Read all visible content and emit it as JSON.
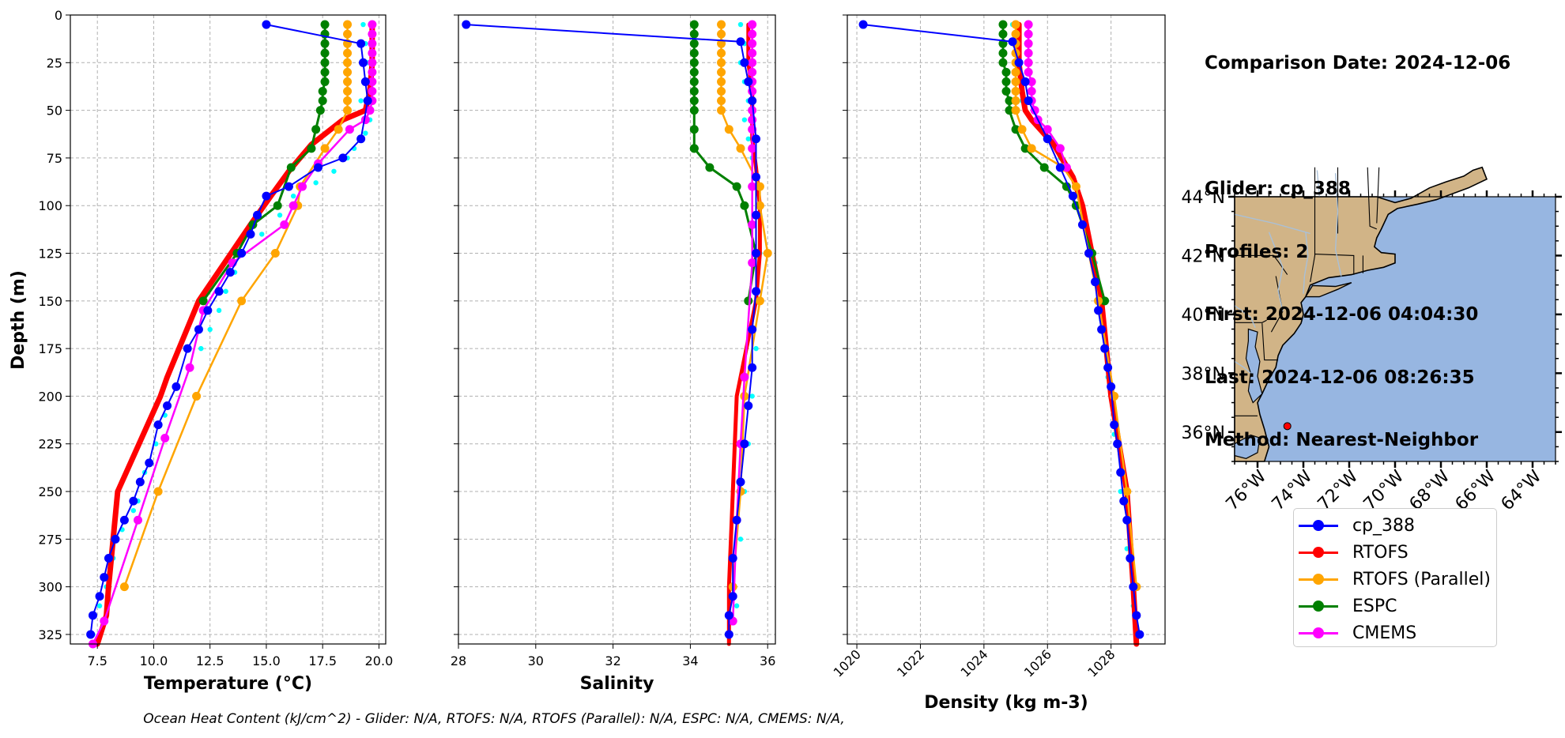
{
  "info": {
    "title": "Comparison Date: 2024-12-06",
    "lines": [
      "Glider: cp_388",
      "Profiles: 2",
      "First: 2024-12-06 04:04:30",
      "Last: 2024-12-06 08:26:35",
      "Method: Nearest-Neighbor"
    ]
  },
  "footer": "Ocean Heat Content (kJ/cm^2) - Glider: N/A,  RTOFS: N/A,  RTOFS (Parallel): N/A,  ESPC: N/A,  CMEMS: N/A,",
  "legend": [
    {
      "name": "cp_388",
      "color": "#0000ff"
    },
    {
      "name": "RTOFS",
      "color": "#ff0000"
    },
    {
      "name": "RTOFS (Parallel)",
      "color": "#ffa500"
    },
    {
      "name": "ESPC",
      "color": "#008000"
    },
    {
      "name": "CMEMS",
      "color": "#ff00ff"
    }
  ],
  "chart_data": [
    {
      "type": "line",
      "xlabel": "Temperature (°C)",
      "ylabel": "Depth (m)",
      "xlim": [
        6.3,
        20.3
      ],
      "ylim": [
        330,
        0
      ],
      "xticks": [
        "7.5",
        "10.0",
        "12.5",
        "15.0",
        "17.5",
        "20.0"
      ],
      "xtick_values": [
        7.5,
        10,
        12.5,
        15,
        17.5,
        20
      ],
      "yticks": [
        "0",
        "25",
        "50",
        "75",
        "100",
        "125",
        "150",
        "175",
        "200",
        "225",
        "250",
        "275",
        "300",
        "325"
      ],
      "grid": true,
      "series": [
        {
          "name": "cp_388 (other profile)",
          "color": "#00ffff",
          "style": "dots",
          "x": [
            19.3,
            19.4,
            19.5,
            19.5,
            19.2,
            19.6,
            19.4,
            18.9,
            18.6,
            18.0,
            17.2,
            16.2,
            15.6,
            14.8,
            14.0,
            13.6,
            13.2,
            12.9,
            12.5,
            12.1,
            11.6,
            11.0,
            10.5,
            10.1,
            9.6,
            9.3,
            9.1,
            8.6,
            8.2,
            7.9,
            7.6,
            7.3
          ],
          "y": [
            5,
            15,
            25,
            35,
            45,
            55,
            62,
            70,
            75,
            82,
            88,
            95,
            105,
            115,
            125,
            135,
            145,
            155,
            165,
            175,
            185,
            195,
            210,
            225,
            240,
            255,
            260,
            270,
            285,
            300,
            310,
            325
          ]
        },
        {
          "name": "RTOFS",
          "color": "#ff0000",
          "width": 7,
          "marker": false,
          "x": [
            19.7,
            19.7,
            19.7,
            19.6,
            19.4,
            18.4,
            17.0,
            16.0,
            15.2,
            14.3,
            12.0,
            10.6,
            10.3,
            8.4,
            8.0,
            7.9,
            7.5
          ],
          "y": [
            5,
            15,
            25,
            40,
            50,
            55,
            68,
            82,
            95,
            110,
            150,
            190,
            200,
            250,
            300,
            315,
            330
          ]
        },
        {
          "name": "ESPC",
          "color": "#008000",
          "width": 3,
          "x": [
            17.6,
            17.6,
            17.6,
            17.6,
            17.6,
            17.6,
            17.6,
            17.5,
            17.5,
            17.4,
            17.2,
            17.0,
            16.1,
            15.5,
            14.4,
            13.7,
            12.2
          ],
          "y": [
            5,
            10,
            15,
            20,
            25,
            30,
            35,
            40,
            45,
            50,
            60,
            70,
            80,
            100,
            110,
            125,
            150
          ]
        },
        {
          "name": "RTOFS (Parallel)",
          "color": "#ffa500",
          "width": 2.5,
          "x": [
            18.6,
            18.6,
            18.6,
            18.6,
            18.6,
            18.6,
            18.6,
            18.6,
            18.6,
            18.6,
            18.2,
            17.6,
            16.5,
            16.4,
            15.4,
            13.9,
            11.9,
            10.2,
            8.7
          ],
          "y": [
            5,
            10,
            15,
            20,
            25,
            30,
            35,
            40,
            45,
            50,
            60,
            70,
            90,
            100,
            125,
            150,
            200,
            250,
            300
          ]
        },
        {
          "name": "CMEMS",
          "color": "#ff00ff",
          "width": 2.5,
          "x": [
            19.7,
            19.7,
            19.7,
            19.7,
            19.7,
            19.7,
            19.7,
            19.7,
            19.7,
            19.6,
            19.4,
            18.7,
            17.3,
            16.6,
            16.2,
            15.8,
            13.5,
            12.2,
            11.6,
            10.5,
            9.3,
            7.8,
            7.3
          ],
          "y": [
            5,
            10,
            15,
            20,
            25,
            30,
            35,
            40,
            45,
            50,
            55,
            60,
            78,
            90,
            100,
            110,
            130,
            155,
            185,
            222,
            265,
            318,
            330
          ]
        },
        {
          "name": "cp_388",
          "color": "#0000ff",
          "width": 2,
          "x": [
            15.0,
            19.2,
            19.3,
            19.4,
            19.5,
            19.2,
            18.4,
            17.3,
            16.0,
            15.0,
            14.6,
            14.3,
            13.9,
            13.4,
            12.9,
            12.4,
            12.0,
            11.5,
            11.0,
            10.6,
            10.2,
            9.8,
            9.4,
            9.1,
            8.7,
            8.3,
            8.0,
            7.8,
            7.6,
            7.3,
            7.2
          ],
          "y": [
            5,
            15,
            25,
            35,
            45,
            65,
            75,
            80,
            90,
            95,
            105,
            115,
            125,
            135,
            145,
            155,
            165,
            175,
            195,
            205,
            215,
            235,
            245,
            255,
            265,
            275,
            285,
            295,
            305,
            315,
            325
          ]
        }
      ]
    },
    {
      "type": "line",
      "xlabel": "Salinity",
      "ylim": [
        330,
        0
      ],
      "xlim": [
        28.0,
        36.2
      ],
      "xticks": [
        "28",
        "30",
        "32",
        "34",
        "36"
      ],
      "xtick_values": [
        28,
        30,
        32,
        34,
        36
      ],
      "grid": true,
      "series": [
        {
          "name": "cp_388 (other profile)",
          "color": "#00ffff",
          "style": "dots",
          "x": [
            35.3,
            35.4,
            35.3,
            35.4,
            35.5,
            35.4,
            35.5,
            35.6,
            35.7,
            35.8,
            35.8,
            35.8,
            35.7,
            35.6,
            35.5,
            35.4,
            35.3,
            35.2
          ],
          "y": [
            5,
            15,
            25,
            35,
            45,
            55,
            65,
            75,
            85,
            100,
            125,
            150,
            175,
            200,
            225,
            250,
            275,
            310
          ]
        },
        {
          "name": "RTOFS",
          "color": "#ff0000",
          "width": 5,
          "marker": false,
          "x": [
            35.5,
            35.5,
            35.5,
            35.6,
            35.6,
            35.6,
            35.6,
            35.7,
            35.8,
            35.8,
            35.7,
            35.2,
            35.1,
            35.0,
            35.0
          ],
          "y": [
            5,
            15,
            25,
            40,
            50,
            55,
            65,
            80,
            100,
            125,
            150,
            200,
            250,
            300,
            330
          ]
        },
        {
          "name": "ESPC",
          "color": "#008000",
          "width": 3,
          "x": [
            34.1,
            34.1,
            34.1,
            34.1,
            34.1,
            34.1,
            34.1,
            34.1,
            34.1,
            34.1,
            34.1,
            34.1,
            34.1,
            34.5,
            35.2,
            35.4,
            35.7,
            35.5
          ],
          "y": [
            5,
            10,
            15,
            20,
            25,
            30,
            35,
            40,
            45,
            50,
            60,
            70,
            70,
            80,
            90,
            100,
            125,
            150
          ]
        },
        {
          "name": "RTOFS (Parallel)",
          "color": "#ffa500",
          "width": 2.5,
          "x": [
            34.8,
            34.8,
            34.8,
            34.8,
            34.8,
            34.8,
            34.8,
            34.8,
            34.8,
            34.8,
            35.0,
            35.3,
            35.8,
            35.8,
            36.0,
            35.8,
            35.4,
            35.3,
            35.1
          ],
          "y": [
            5,
            10,
            15,
            20,
            25,
            30,
            35,
            40,
            45,
            50,
            60,
            70,
            90,
            100,
            125,
            150,
            200,
            250,
            300
          ]
        },
        {
          "name": "CMEMS",
          "color": "#ff00ff",
          "width": 2.5,
          "x": [
            35.6,
            35.6,
            35.6,
            35.6,
            35.6,
            35.6,
            35.6,
            35.6,
            35.6,
            35.6,
            35.6,
            35.6,
            35.6,
            35.6,
            35.6,
            35.6,
            35.4,
            35.3,
            35.2,
            35.1
          ],
          "y": [
            5,
            10,
            15,
            20,
            25,
            30,
            35,
            40,
            45,
            50,
            55,
            60,
            70,
            90,
            110,
            130,
            190,
            225,
            265,
            318
          ]
        },
        {
          "name": "cp_388",
          "color": "#0000ff",
          "width": 2,
          "x": [
            28.2,
            35.3,
            35.4,
            35.5,
            35.6,
            35.7,
            35.7,
            35.7,
            35.7,
            35.7,
            35.6,
            35.6,
            35.5,
            35.4,
            35.3,
            35.2,
            35.1,
            35.1,
            35.0,
            35.0
          ],
          "y": [
            5,
            14,
            25,
            35,
            45,
            65,
            85,
            105,
            125,
            145,
            165,
            185,
            205,
            225,
            245,
            265,
            285,
            305,
            315,
            325
          ]
        }
      ]
    },
    {
      "type": "line",
      "xlabel": "Density (kg m-3)",
      "ylim": [
        330,
        0
      ],
      "xlim": [
        1019.7,
        1029.7
      ],
      "xticks": [
        "1020",
        "1022",
        "1024",
        "1026",
        "1028"
      ],
      "xtick_values": [
        1020,
        1022,
        1024,
        1026,
        1028
      ],
      "grid": true,
      "series": [
        {
          "name": "cp_388 (other profile)",
          "color": "#00ffff",
          "style": "dots",
          "x": [
            1024.9,
            1024.9,
            1025.0,
            1025.1,
            1025.2,
            1025.5,
            1026.0,
            1026.4,
            1026.9,
            1027.2,
            1027.5,
            1027.7,
            1027.9,
            1028.1,
            1028.3,
            1028.5,
            1028.7
          ],
          "y": [
            5,
            15,
            25,
            35,
            45,
            55,
            65,
            75,
            90,
            110,
            130,
            160,
            190,
            220,
            250,
            280,
            310
          ]
        },
        {
          "name": "RTOFS",
          "color": "#ff0000",
          "width": 7,
          "marker": false,
          "x": [
            1025.1,
            1025.1,
            1025.1,
            1025.2,
            1025.3,
            1025.5,
            1026.2,
            1026.8,
            1027.1,
            1027.4,
            1027.7,
            1028.0,
            1028.5,
            1028.7,
            1028.8
          ],
          "y": [
            5,
            15,
            25,
            40,
            50,
            55,
            68,
            85,
            100,
            125,
            150,
            200,
            250,
            300,
            330
          ]
        },
        {
          "name": "ESPC",
          "color": "#008000",
          "width": 3,
          "x": [
            1024.6,
            1024.6,
            1024.6,
            1024.6,
            1024.6,
            1024.7,
            1024.7,
            1024.7,
            1024.8,
            1024.8,
            1025.0,
            1025.3,
            1025.9,
            1026.6,
            1026.9,
            1027.4,
            1027.8
          ],
          "y": [
            5,
            10,
            15,
            20,
            25,
            30,
            35,
            40,
            45,
            50,
            60,
            70,
            80,
            90,
            100,
            125,
            150
          ]
        },
        {
          "name": "RTOFS (Parallel)",
          "color": "#ffa500",
          "width": 2.5,
          "x": [
            1025.0,
            1025.0,
            1025.0,
            1025.0,
            1025.0,
            1025.0,
            1025.0,
            1025.0,
            1025.0,
            1025.0,
            1025.2,
            1025.5,
            1026.5,
            1026.9,
            1027.3,
            1027.6,
            1028.1,
            1028.5,
            1028.8
          ],
          "y": [
            5,
            10,
            15,
            20,
            25,
            30,
            35,
            40,
            45,
            50,
            60,
            70,
            80,
            90,
            125,
            150,
            200,
            250,
            300
          ]
        },
        {
          "name": "CMEMS",
          "color": "#ff00ff",
          "width": 2.5,
          "x": [
            1025.4,
            1025.4,
            1025.4,
            1025.4,
            1025.4,
            1025.4,
            1025.5,
            1025.5,
            1025.5,
            1025.6,
            1025.7,
            1026.0,
            1026.4,
            1026.6
          ],
          "y": [
            5,
            10,
            15,
            20,
            25,
            30,
            35,
            40,
            45,
            50,
            55,
            60,
            70,
            80
          ]
        },
        {
          "name": "cp_388",
          "color": "#0000ff",
          "width": 2,
          "x": [
            1020.2,
            1024.9,
            1025.1,
            1025.3,
            1025.4,
            1026.0,
            1026.4,
            1026.8,
            1027.1,
            1027.3,
            1027.5,
            1027.6,
            1027.7,
            1027.8,
            1027.9,
            1028.0,
            1028.1,
            1028.2,
            1028.3,
            1028.4,
            1028.5,
            1028.6,
            1028.7,
            1028.8,
            1028.9
          ],
          "y": [
            5,
            14,
            25,
            35,
            45,
            65,
            80,
            95,
            110,
            125,
            140,
            155,
            165,
            175,
            185,
            195,
            215,
            225,
            240,
            255,
            265,
            285,
            300,
            315,
            325
          ]
        }
      ]
    },
    {
      "type": "map",
      "lat_ticks": [
        "44°N",
        "42°N",
        "40°N",
        "38°N",
        "36°N"
      ],
      "lon_ticks": [
        "76°W",
        "74°W",
        "72°W",
        "70°W",
        "68°W",
        "66°W",
        "64°W"
      ],
      "lat_range": [
        35,
        44
      ],
      "lon_range": [
        -77,
        -63
      ],
      "glider_position": {
        "lat": 36.2,
        "lon": -74.7
      },
      "ocean_color": "#97b6e1",
      "land_color": "#d1b487"
    }
  ]
}
